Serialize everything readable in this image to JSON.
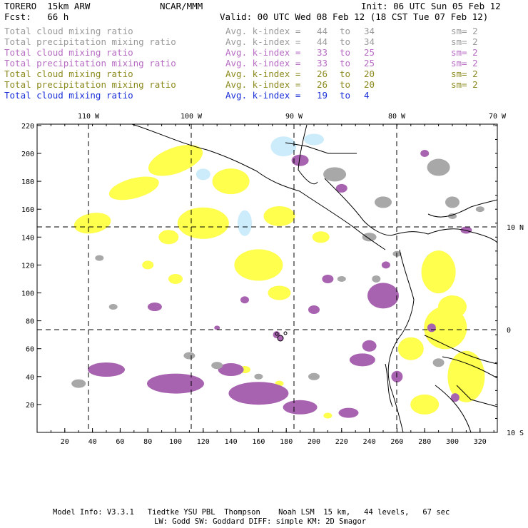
{
  "header": {
    "model": "TORERO  15km ARW",
    "org": "NCAR/MMM",
    "init": "Init: 06 UTC Sun 05 Feb 12",
    "forecast": "Fcst:   66 h",
    "valid": "Valid: 00 UTC Wed 08 Feb 12 (18 CST Tue 07 Feb 12)"
  },
  "fields": [
    {
      "name": "Total cloud mixing ratio",
      "label": "Avg. k-index =",
      "from": "44",
      "to_word": "to",
      "to": "34",
      "sm": "sm= 2",
      "color": "#9a9a9a"
    },
    {
      "name": "Total precipitation mixing ratio",
      "label": "Avg. k-index =",
      "from": "44",
      "to_word": "to",
      "to": "34",
      "sm": "sm= 2",
      "color": "#9a9a9a"
    },
    {
      "name": "Total cloud mixing ratio",
      "label": "Avg. k-index =",
      "from": "33",
      "to_word": "to",
      "to": "25",
      "sm": "sm= 2",
      "color": "#b86cc4"
    },
    {
      "name": "Total precipitation mixing ratio",
      "label": "Avg. k-index =",
      "from": "33",
      "to_word": "to",
      "to": "25",
      "sm": "sm= 2",
      "color": "#b86cc4"
    },
    {
      "name": "Total cloud mixing ratio",
      "label": "Avg. k-index =",
      "from": "26",
      "to_word": "to",
      "to": "20",
      "sm": "sm= 2",
      "color": "#8c8a1e"
    },
    {
      "name": "Total precipitation mixing ratio",
      "label": "Avg. k-index =",
      "from": "26",
      "to_word": "to",
      "to": "20",
      "sm": "sm= 2",
      "color": "#8c8a1e"
    },
    {
      "name": "Total cloud mixing ratio",
      "label": "Avg. k-index =",
      "from": "19",
      "to_word": "to",
      "to": "4",
      "sm": "",
      "color": "#1a2ed8"
    }
  ],
  "map": {
    "top_longitudes": [
      "110 W",
      "100 W",
      "90 W",
      "80 W",
      "70 W"
    ],
    "right_latitudes": [
      "10 N",
      "0",
      "10 S"
    ],
    "x_ticks": [
      "20",
      "40",
      "60",
      "80",
      "100",
      "120",
      "140",
      "160",
      "180",
      "200",
      "220",
      "240",
      "260",
      "280",
      "300",
      "320"
    ],
    "y_ticks": [
      "20",
      "40",
      "60",
      "80",
      "100",
      "120",
      "140",
      "160",
      "180",
      "200",
      "220"
    ],
    "shading_colors": {
      "gray": "#a8a8a8",
      "purple": "#a763b0",
      "yellow": "#ffff4d",
      "light_blue": "#ccecfb"
    }
  },
  "footer": {
    "line1": "Model Info: V3.3.1   Tiedtke YSU PBL  Thompson    Noah LSM  15 km,   44 levels,   67 sec",
    "line2": "LW: Godd SW: Goddard DIFF: simple KM: 2D Smagor"
  }
}
